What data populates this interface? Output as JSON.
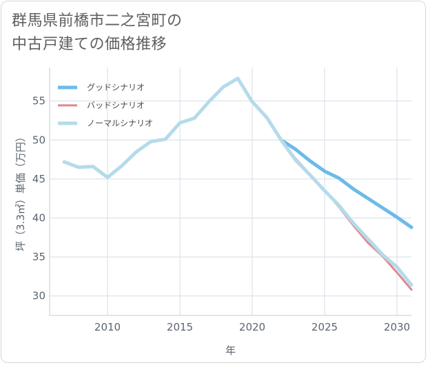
{
  "title_lines": [
    "群馬県前橋市二之宮町の",
    "中古戸建ての価格推移"
  ],
  "chart_data": {
    "type": "line",
    "title": "群馬県前橋市二之宮町の中古戸建ての価格推移",
    "xlabel": "年",
    "ylabel": "坪（3.3㎡）単価（万円）",
    "xlim": [
      2006,
      2031
    ],
    "ylim": [
      27.5,
      59.3
    ],
    "xticks": [
      2010,
      2015,
      2020,
      2025,
      2030
    ],
    "yticks": [
      30,
      35,
      40,
      45,
      50,
      55
    ],
    "grid": true,
    "legend_position": "top-left",
    "series": [
      {
        "name": "グッドシナリオ",
        "color": "#6cbbe9",
        "x": [
          2022,
          2023,
          2024,
          2025,
          2026,
          2027,
          2028,
          2029,
          2030,
          2031
        ],
        "y": [
          50.0,
          48.8,
          47.3,
          46.0,
          45.1,
          43.7,
          42.5,
          41.3,
          40.1,
          38.8
        ]
      },
      {
        "name": "バッドシナリオ",
        "color": "#e0878e",
        "x": [
          2022,
          2023,
          2024,
          2025,
          2026,
          2027,
          2028,
          2029,
          2030,
          2031
        ],
        "y": [
          50.0,
          47.6,
          45.6,
          43.5,
          41.4,
          39.0,
          36.8,
          35.1,
          33.0,
          30.8
        ]
      },
      {
        "name": "ノーマルシナリオ",
        "color": "#b5dbea",
        "x": [
          2007,
          2008,
          2009,
          2010,
          2011,
          2012,
          2013,
          2014,
          2015,
          2016,
          2017,
          2018,
          2019,
          2020,
          2021,
          2022,
          2023,
          2024,
          2025,
          2026,
          2027,
          2028,
          2029,
          2030,
          2031
        ],
        "y": [
          47.2,
          46.5,
          46.6,
          45.2,
          46.7,
          48.5,
          49.8,
          50.1,
          52.2,
          52.8,
          54.9,
          56.8,
          57.9,
          54.9,
          52.9,
          50.0,
          47.4,
          45.5,
          43.5,
          41.6,
          39.3,
          37.3,
          35.3,
          33.7,
          31.4
        ]
      }
    ]
  }
}
